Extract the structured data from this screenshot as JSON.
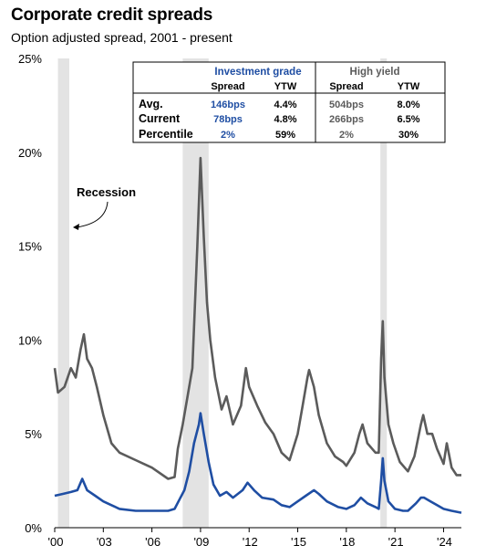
{
  "header": {
    "title": "Corporate credit spreads",
    "subtitle": "Option adjusted spread, 2001 - present"
  },
  "colors": {
    "ig": "#1f4ea3",
    "hy": "#5b5b5b",
    "recession": "#e3e3e3"
  },
  "annotation": {
    "recession_label": "Recession"
  },
  "table": {
    "groups": {
      "ig": "Investment grade",
      "hy": "High yield"
    },
    "cols": {
      "spread": "Spread",
      "ytw": "YTW"
    },
    "rows": [
      {
        "label": "Avg.",
        "ig_spread": "146bps",
        "ig_ytw": "4.4%",
        "hy_spread": "504bps",
        "hy_ytw": "8.0%"
      },
      {
        "label": "Current",
        "ig_spread": "78bps",
        "ig_ytw": "4.8%",
        "hy_spread": "266bps",
        "hy_ytw": "6.5%"
      },
      {
        "label": "Percentile",
        "ig_spread": "2%",
        "ig_ytw": "59%",
        "hy_spread": "2%",
        "hy_ytw": "30%"
      }
    ]
  },
  "chart_data": {
    "type": "line",
    "title": "Corporate credit spreads",
    "subtitle": "Option adjusted spread, 2001 - present",
    "xlim": [
      2000.0,
      2025.1
    ],
    "ylim": [
      0,
      25
    ],
    "x_ticks": [
      {
        "x": 2000,
        "label": "'00"
      },
      {
        "x": 2003,
        "label": "'03"
      },
      {
        "x": 2006,
        "label": "'06"
      },
      {
        "x": 2009,
        "label": "'09"
      },
      {
        "x": 2012,
        "label": "'12"
      },
      {
        "x": 2015,
        "label": "'15"
      },
      {
        "x": 2018,
        "label": "'18"
      },
      {
        "x": 2021,
        "label": "'21"
      },
      {
        "x": 2024,
        "label": "'24"
      }
    ],
    "y_ticks": [
      {
        "y": 0,
        "label": "0%"
      },
      {
        "y": 5,
        "label": "5%"
      },
      {
        "y": 10,
        "label": "10%"
      },
      {
        "y": 15,
        "label": "15%"
      },
      {
        "y": 20,
        "label": "20%"
      },
      {
        "y": 25,
        "label": "25%"
      }
    ],
    "recessions": [
      [
        2000.2,
        2000.9
      ],
      [
        2007.9,
        2009.5
      ],
      [
        2020.1,
        2020.5
      ]
    ],
    "series": [
      {
        "color": "#5b5b5b",
        "points": [
          [
            2000.0,
            8.5
          ],
          [
            2000.2,
            7.2
          ],
          [
            2000.6,
            7.5
          ],
          [
            2001.0,
            8.5
          ],
          [
            2001.3,
            8.0
          ],
          [
            2001.6,
            9.5
          ],
          [
            2001.8,
            10.3
          ],
          [
            2002.0,
            9.0
          ],
          [
            2002.3,
            8.5
          ],
          [
            2002.6,
            7.5
          ],
          [
            2003.0,
            6.0
          ],
          [
            2003.5,
            4.5
          ],
          [
            2004.0,
            4.0
          ],
          [
            2005.0,
            3.6
          ],
          [
            2006.0,
            3.2
          ],
          [
            2007.0,
            2.6
          ],
          [
            2007.4,
            2.7
          ],
          [
            2007.6,
            4.2
          ],
          [
            2007.9,
            5.5
          ],
          [
            2008.2,
            7.0
          ],
          [
            2008.5,
            8.5
          ],
          [
            2008.8,
            15.0
          ],
          [
            2009.0,
            19.7
          ],
          [
            2009.2,
            15.5
          ],
          [
            2009.4,
            12.0
          ],
          [
            2009.6,
            10.0
          ],
          [
            2009.9,
            8.0
          ],
          [
            2010.3,
            6.3
          ],
          [
            2010.6,
            7.0
          ],
          [
            2011.0,
            5.5
          ],
          [
            2011.5,
            6.5
          ],
          [
            2011.8,
            8.5
          ],
          [
            2012.0,
            7.5
          ],
          [
            2012.5,
            6.5
          ],
          [
            2013.0,
            5.6
          ],
          [
            2013.5,
            5.0
          ],
          [
            2014.0,
            4.0
          ],
          [
            2014.5,
            3.6
          ],
          [
            2015.0,
            5.0
          ],
          [
            2015.3,
            6.5
          ],
          [
            2015.6,
            8.0
          ],
          [
            2015.7,
            8.4
          ],
          [
            2016.0,
            7.5
          ],
          [
            2016.3,
            6.0
          ],
          [
            2016.8,
            4.5
          ],
          [
            2017.3,
            3.8
          ],
          [
            2017.8,
            3.5
          ],
          [
            2018.0,
            3.3
          ],
          [
            2018.5,
            4.0
          ],
          [
            2018.8,
            5.0
          ],
          [
            2019.0,
            5.5
          ],
          [
            2019.3,
            4.5
          ],
          [
            2019.8,
            4.0
          ],
          [
            2020.0,
            4.0
          ],
          [
            2020.15,
            9.0
          ],
          [
            2020.25,
            11.0
          ],
          [
            2020.35,
            8.0
          ],
          [
            2020.6,
            5.5
          ],
          [
            2020.9,
            4.5
          ],
          [
            2021.3,
            3.5
          ],
          [
            2021.8,
            3.0
          ],
          [
            2022.2,
            3.8
          ],
          [
            2022.6,
            5.5
          ],
          [
            2022.75,
            6.0
          ],
          [
            2023.0,
            5.0
          ],
          [
            2023.3,
            5.0
          ],
          [
            2023.6,
            4.2
          ],
          [
            2024.0,
            3.4
          ],
          [
            2024.2,
            4.5
          ],
          [
            2024.5,
            3.2
          ],
          [
            2024.8,
            2.8
          ],
          [
            2025.1,
            2.8
          ]
        ]
      },
      {
        "color": "#1f4ea3",
        "points": [
          [
            2000.0,
            1.7
          ],
          [
            2000.5,
            1.8
          ],
          [
            2001.0,
            1.9
          ],
          [
            2001.4,
            2.0
          ],
          [
            2001.7,
            2.6
          ],
          [
            2002.0,
            2.0
          ],
          [
            2002.5,
            1.7
          ],
          [
            2003.0,
            1.4
          ],
          [
            2003.5,
            1.2
          ],
          [
            2004.0,
            1.0
          ],
          [
            2005.0,
            0.9
          ],
          [
            2006.0,
            0.9
          ],
          [
            2007.0,
            0.9
          ],
          [
            2007.4,
            1.0
          ],
          [
            2007.7,
            1.5
          ],
          [
            2008.0,
            2.0
          ],
          [
            2008.3,
            3.0
          ],
          [
            2008.6,
            4.5
          ],
          [
            2008.9,
            5.5
          ],
          [
            2009.0,
            6.1
          ],
          [
            2009.2,
            5.0
          ],
          [
            2009.5,
            3.5
          ],
          [
            2009.8,
            2.3
          ],
          [
            2010.2,
            1.7
          ],
          [
            2010.6,
            1.9
          ],
          [
            2011.0,
            1.6
          ],
          [
            2011.6,
            2.0
          ],
          [
            2011.9,
            2.4
          ],
          [
            2012.3,
            2.0
          ],
          [
            2012.8,
            1.6
          ],
          [
            2013.5,
            1.5
          ],
          [
            2014.0,
            1.2
          ],
          [
            2014.5,
            1.1
          ],
          [
            2015.0,
            1.4
          ],
          [
            2015.5,
            1.7
          ],
          [
            2016.0,
            2.0
          ],
          [
            2016.3,
            1.8
          ],
          [
            2016.8,
            1.4
          ],
          [
            2017.5,
            1.1
          ],
          [
            2018.0,
            1.0
          ],
          [
            2018.5,
            1.2
          ],
          [
            2018.9,
            1.6
          ],
          [
            2019.3,
            1.3
          ],
          [
            2019.8,
            1.1
          ],
          [
            2020.0,
            1.0
          ],
          [
            2020.15,
            2.5
          ],
          [
            2020.25,
            3.7
          ],
          [
            2020.35,
            2.5
          ],
          [
            2020.6,
            1.4
          ],
          [
            2021.0,
            1.0
          ],
          [
            2021.5,
            0.9
          ],
          [
            2021.8,
            0.9
          ],
          [
            2022.3,
            1.3
          ],
          [
            2022.6,
            1.6
          ],
          [
            2022.8,
            1.6
          ],
          [
            2023.2,
            1.4
          ],
          [
            2023.6,
            1.2
          ],
          [
            2024.0,
            1.0
          ],
          [
            2024.5,
            0.9
          ],
          [
            2025.1,
            0.8
          ]
        ]
      }
    ]
  }
}
